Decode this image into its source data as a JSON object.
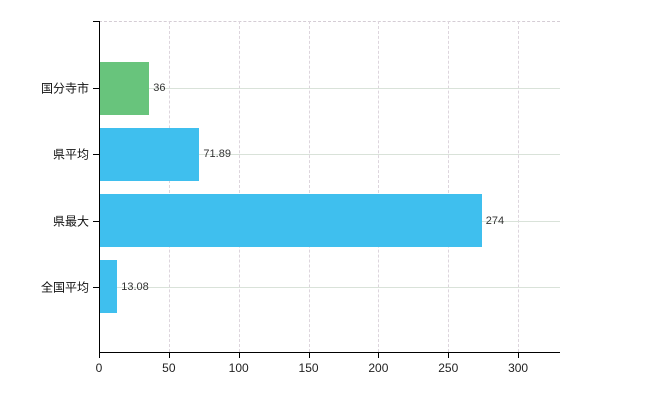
{
  "chart_data": {
    "type": "bar",
    "orientation": "horizontal",
    "title": "",
    "xlabel": "",
    "ylabel": "",
    "legend": "none",
    "grid": "on",
    "categories": [
      "国分寺市",
      "県平均",
      "県最大",
      "全国平均"
    ],
    "values": [
      36,
      71.89,
      274,
      13.08
    ],
    "value_labels": [
      "36",
      "71.89",
      "274",
      "13.08"
    ],
    "bar_colors": [
      "#68c47c",
      "#3fbfee",
      "#3fbfee",
      "#3fbfee"
    ],
    "x_ticks": [
      0,
      50,
      100,
      150,
      200,
      250,
      300
    ],
    "x_tick_labels": [
      "0",
      "50",
      "100",
      "150",
      "200",
      "250",
      "300"
    ],
    "xlim": [
      0,
      330
    ],
    "colors": {
      "bar_green": "#68c47c",
      "bar_blue": "#3fbfee",
      "axis": "#000000",
      "grid_vertical": "#ddd5dd",
      "grid_horizontal": "#d9e2d9",
      "text": "#222222",
      "background": "#ffffff"
    }
  }
}
